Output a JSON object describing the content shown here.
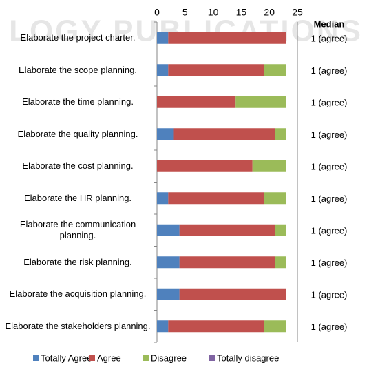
{
  "chart_data": {
    "type": "stacked_barh",
    "watermark": "LOGY PUBLICATIONS",
    "categories": [
      "Elaborate the project charter.",
      "Elaborate the scope planning.",
      "Elaborate the time planning.",
      "Elaborate the quality planning.",
      "Elaborate the cost planning.",
      "Elaborate the HR planning.",
      "Elaborate the communication planning.",
      "Elaborate the risk planning.",
      "Elaborate the acquisition planning.",
      "Elaborate the stakeholders planning."
    ],
    "series": [
      {
        "name": "Totally Agree",
        "color": "#4f81bd",
        "values": [
          2,
          2,
          0,
          3,
          0,
          2,
          4,
          4,
          4,
          2
        ]
      },
      {
        "name": "Agree",
        "color": "#c0504d",
        "values": [
          21,
          17,
          14,
          18,
          17,
          17,
          17,
          17,
          19,
          17
        ]
      },
      {
        "name": "Disagree",
        "color": "#9bbb59",
        "values": [
          0,
          4,
          9,
          2,
          6,
          4,
          2,
          2,
          0,
          4
        ]
      },
      {
        "name": "Totally disagree",
        "color": "#8064a2",
        "values": [
          0,
          0,
          0,
          0,
          0,
          0,
          0,
          0,
          0,
          0
        ]
      }
    ],
    "xlim": [
      0,
      25
    ],
    "xticks": [
      0,
      5,
      10,
      15,
      20,
      25
    ],
    "median_header": "Median",
    "medians": [
      "1 (agree)",
      "1 (agree)",
      "1 (agree)",
      "1 (agree)",
      "1 (agree)",
      "1 (agree)",
      "1 (agree)",
      "1 (agree)",
      "1 (agree)",
      "1 (agree)"
    ]
  }
}
